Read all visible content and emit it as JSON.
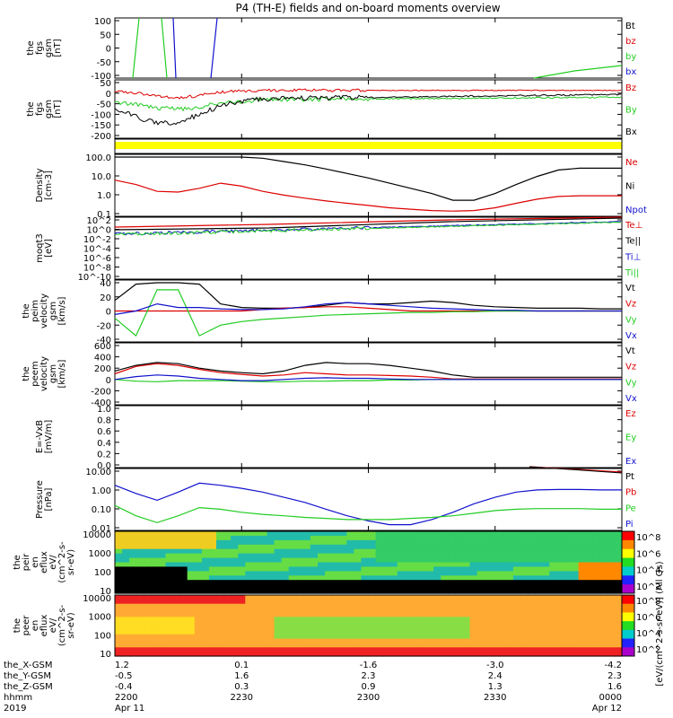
{
  "title": "P4 (TH-E) fields and on-board moments overview",
  "colors": {
    "black": "#000000",
    "red": "#dd0000",
    "green": "#22cc22",
    "blue": "#1111cc",
    "yellow": "#ffff00"
  },
  "panels": [
    {
      "id": "fgs",
      "ylabel": [
        "the",
        "fgs",
        "gsm",
        "[nT]"
      ],
      "yticks": [
        "100",
        "50",
        "0",
        "-50",
        "-100"
      ],
      "legend": [
        {
          "text": "Bt",
          "color": "#000000"
        },
        {
          "text": "bz",
          "color": "#dd0000"
        },
        {
          "text": "by",
          "color": "#22cc22"
        },
        {
          "text": "bx",
          "color": "#1111cc"
        }
      ]
    },
    {
      "id": "fgs_tiled",
      "ylabel": [
        "the",
        "fgs",
        "gsm",
        "[nT]"
      ],
      "yticks": [
        "50",
        "0",
        "-50",
        "-100",
        "-150",
        "-200"
      ],
      "legend": [
        {
          "text": "Bz",
          "color": "#dd0000"
        },
        {
          "text": "By",
          "color": "#22cc22"
        },
        {
          "text": "Bx",
          "color": "#000000"
        }
      ]
    },
    {
      "id": "density",
      "ylabel": [
        "Density",
        "[cm-3]"
      ],
      "yticks": [
        "100.0",
        "10.0",
        "1.0",
        "0.1"
      ],
      "legend": [
        {
          "text": "Ne",
          "color": "#dd0000"
        },
        {
          "text": "Ni",
          "color": "#000000"
        },
        {
          "text": "Npot",
          "color": "#1111cc"
        }
      ]
    },
    {
      "id": "temperature",
      "ylabel": [
        "moqt3",
        "[eV]"
      ],
      "yticks": [
        "10^2",
        "10^0",
        "10^-2",
        "10^-4",
        "10^-6",
        "10^-8",
        "10^-10"
      ],
      "legend": [
        {
          "text": "Te⊥",
          "color": "#dd0000"
        },
        {
          "text": "Te||",
          "color": "#000000"
        },
        {
          "text": "Ti⊥",
          "color": "#1111cc"
        },
        {
          "text": "Ti||",
          "color": "#22cc22"
        }
      ]
    },
    {
      "id": "peim_velocity",
      "ylabel": [
        "the",
        "peim",
        "velocity",
        "gsm",
        "[km/s]"
      ],
      "yticks": [
        "40",
        "20",
        "0",
        "-20",
        "-40"
      ],
      "legend": [
        {
          "text": "Vt",
          "color": "#000000"
        },
        {
          "text": "Vz",
          "color": "#dd0000"
        },
        {
          "text": "Vy",
          "color": "#22cc22"
        },
        {
          "text": "Vx",
          "color": "#1111cc"
        }
      ]
    },
    {
      "id": "peem_velocity",
      "ylabel": [
        "the",
        "peem",
        "velocity",
        "gsm",
        "[km/s]"
      ],
      "yticks": [
        "600",
        "400",
        "200",
        "0",
        "-200",
        "-400"
      ],
      "legend": [
        {
          "text": "Vt",
          "color": "#000000"
        },
        {
          "text": "Vz",
          "color": "#dd0000"
        },
        {
          "text": "Vy",
          "color": "#22cc22"
        },
        {
          "text": "Vx",
          "color": "#1111cc"
        }
      ]
    },
    {
      "id": "efield",
      "ylabel": [
        "E=-VxB",
        "[mV/m]"
      ],
      "yticks": [
        "1.0",
        "0.8",
        "0.6",
        "0.4",
        "0.2",
        "0.0"
      ],
      "legend": [
        {
          "text": "Ez",
          "color": "#dd0000"
        },
        {
          "text": "Ey",
          "color": "#22cc22"
        },
        {
          "text": "Ex",
          "color": "#1111cc"
        }
      ]
    },
    {
      "id": "pressure",
      "ylabel": [
        "Pressure",
        "[nPa]"
      ],
      "yticks": [
        "10.00",
        "1.00",
        "0.10",
        "0.01"
      ],
      "legend": [
        {
          "text": "Pt",
          "color": "#000000"
        },
        {
          "text": "Pb",
          "color": "#dd0000"
        },
        {
          "text": "Pe",
          "color": "#22cc22"
        },
        {
          "text": "Pi",
          "color": "#1111cc"
        }
      ]
    },
    {
      "id": "peir_spec",
      "ylabel": [
        "the",
        "peir",
        "en",
        "eflux",
        "eV/",
        "(cm^2-s-",
        "sr-eV)"
      ],
      "yticks": [
        "10000",
        "1000",
        "100",
        "10"
      ]
    },
    {
      "id": "peer_spec",
      "ylabel": [
        "the",
        "peer",
        "en",
        "eflux",
        "eV/",
        "(cm^2-s-",
        "sr-eV)"
      ],
      "yticks": [
        "10000",
        "1000",
        "100",
        "10"
      ]
    }
  ],
  "colorbar": {
    "label": "[eV/(cm^2-s-sr-eV)] (All Qs)",
    "ticks_peir": [
      "10^8",
      "10^6",
      "10^4",
      "10^2"
    ],
    "ticks_peer": [
      "10^8",
      "10^6",
      "10^4",
      "10^2"
    ]
  },
  "x_axis": {
    "row_labels": [
      "the_X-GSM",
      "the_Y-GSM",
      "the_Z-GSM",
      "hhmm",
      "2019"
    ],
    "columns": [
      [
        "1.2",
        "-0.5",
        "-0.4",
        "2200",
        "Apr 11"
      ],
      [
        "0.1",
        "1.6",
        "0.3",
        "2230",
        ""
      ],
      [
        "-1.6",
        "2.3",
        "0.9",
        "2300",
        ""
      ],
      [
        "-3.0",
        "2.4",
        "1.3",
        "2330",
        ""
      ],
      [
        "-4.2",
        "2.3",
        "1.6",
        "0000",
        "Apr 12"
      ]
    ]
  },
  "chart_data": {
    "type": "line",
    "x": [
      "2200",
      "2205",
      "2210",
      "2215",
      "2220",
      "2225",
      "2230",
      "2235",
      "2240",
      "2245",
      "2250",
      "2255",
      "2300",
      "2305",
      "2310",
      "2315",
      "2320",
      "2325",
      "2330",
      "2335",
      "2340",
      "2345",
      "2350",
      "2355",
      "0000"
    ],
    "density": {
      "ylim": [
        0.1,
        200
      ],
      "log": true,
      "series": [
        {
          "name": "Ni",
          "values": [
            200,
            200,
            200,
            200,
            200,
            200,
            200,
            170,
            110,
            70,
            40,
            22,
            12,
            6,
            3,
            1.5,
            0.6,
            0.6,
            1.5,
            5,
            15,
            35,
            45,
            45,
            45
          ]
        },
        {
          "name": "Ne",
          "values": [
            9,
            5,
            2,
            1.8,
            3,
            6,
            4,
            2,
            1.2,
            0.8,
            0.55,
            0.4,
            0.3,
            0.22,
            0.18,
            0.15,
            0.14,
            0.15,
            0.22,
            0.4,
            0.7,
            1.0,
            1.1,
            1.1,
            1.1
          ]
        }
      ]
    },
    "peim_velocity": {
      "ylim": [
        -40,
        40
      ],
      "series": [
        {
          "name": "Vt",
          "values": [
            15,
            38,
            42,
            40,
            38,
            10,
            5,
            4,
            4,
            5,
            8,
            12,
            10,
            10,
            12,
            14,
            12,
            8,
            6,
            5,
            4,
            4,
            4,
            3,
            3
          ]
        },
        {
          "name": "Vz",
          "values": [
            0,
            0,
            0,
            0,
            0,
            0,
            0,
            2,
            4,
            5,
            6,
            6,
            4,
            2,
            0,
            0,
            0,
            0,
            0,
            0,
            0,
            0,
            0,
            0,
            0
          ]
        },
        {
          "name": "Vy",
          "values": [
            -10,
            -35,
            30,
            30,
            -35,
            -20,
            -15,
            -12,
            -10,
            -8,
            -6,
            -5,
            -4,
            -3,
            -2,
            -2,
            -1,
            -1,
            0,
            0,
            0,
            0,
            0,
            0,
            0
          ]
        },
        {
          "name": "Vx",
          "values": [
            -5,
            0,
            10,
            5,
            5,
            3,
            2,
            2,
            3,
            6,
            10,
            12,
            10,
            8,
            6,
            4,
            3,
            2,
            1,
            1,
            0,
            0,
            0,
            0,
            0
          ]
        }
      ]
    },
    "pressure": {
      "ylim": [
        0.01,
        20
      ],
      "log": true,
      "series": [
        {
          "name": "Pi",
          "values": [
            3,
            1,
            0.4,
            1.2,
            4,
            3,
            2,
            1.2,
            0.6,
            0.3,
            0.12,
            0.05,
            0.025,
            0.015,
            0.015,
            0.03,
            0.08,
            0.25,
            0.6,
            1.2,
            1.6,
            1.7,
            1.7,
            1.6,
            1.6
          ]
        },
        {
          "name": "Pe",
          "values": [
            0.2,
            0.05,
            0.02,
            0.05,
            0.15,
            0.12,
            0.08,
            0.06,
            0.05,
            0.04,
            0.035,
            0.03,
            0.03,
            0.03,
            0.035,
            0.04,
            0.05,
            0.07,
            0.1,
            0.12,
            0.13,
            0.13,
            0.13,
            0.12,
            0.12
          ]
        }
      ]
    },
    "peem_velocity": {
      "ylim": [
        -400,
        600
      ],
      "series": [
        {
          "name": "Vt",
          "values": [
            150,
            250,
            300,
            280,
            200,
            150,
            120,
            100,
            150,
            250,
            300,
            280,
            280,
            250,
            200,
            150,
            80,
            40,
            40,
            40,
            40,
            40,
            40,
            40,
            40
          ]
        },
        {
          "name": "Vz",
          "values": [
            100,
            230,
            280,
            250,
            180,
            120,
            90,
            60,
            80,
            120,
            100,
            80,
            80,
            70,
            60,
            40,
            10,
            10,
            10,
            10,
            10,
            10,
            10,
            10,
            10
          ]
        },
        {
          "name": "Vy",
          "values": [
            0,
            -30,
            -40,
            -20,
            -20,
            -20,
            -30,
            -40,
            -40,
            -30,
            -30,
            -20,
            -20,
            -10,
            -10,
            0,
            0,
            0,
            0,
            0,
            0,
            0,
            0,
            0,
            0
          ]
        },
        {
          "name": "Vx",
          "values": [
            0,
            50,
            80,
            60,
            20,
            0,
            -20,
            -20,
            0,
            20,
            30,
            20,
            20,
            10,
            0,
            0,
            0,
            0,
            0,
            0,
            0,
            0,
            0,
            0,
            0
          ]
        }
      ]
    }
  }
}
